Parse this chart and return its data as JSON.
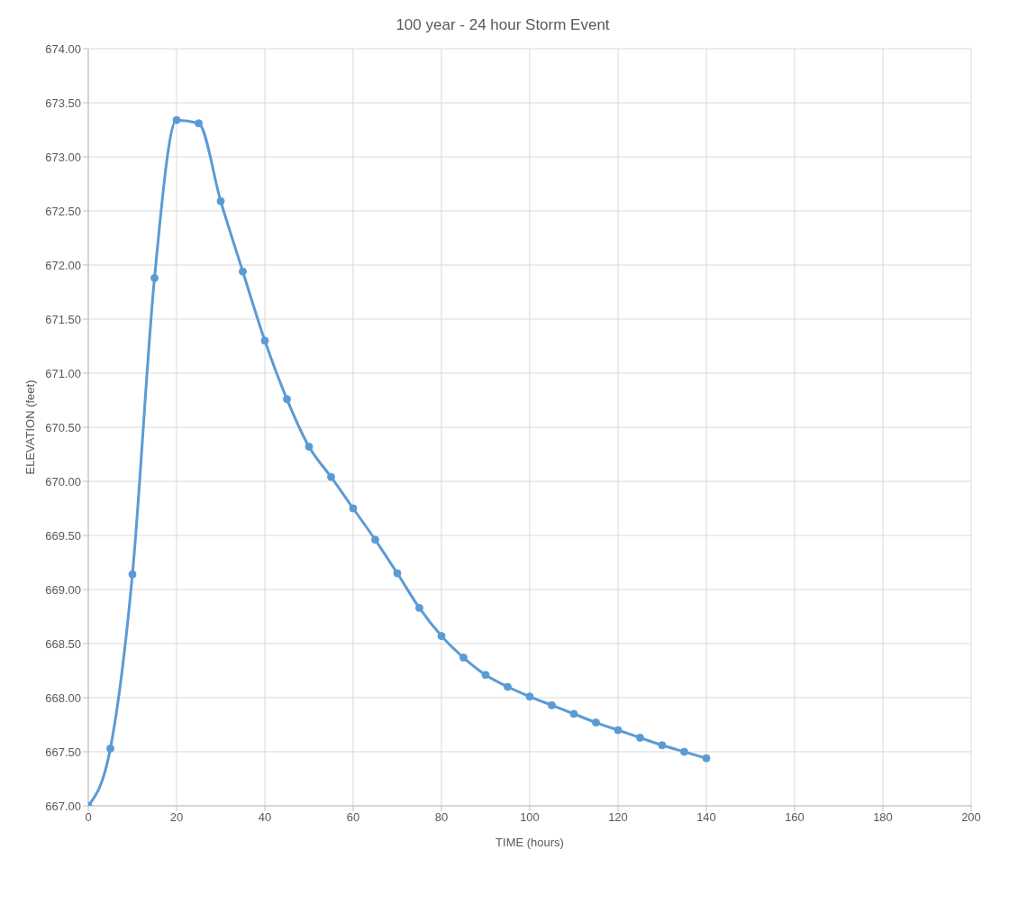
{
  "chart_data": {
    "type": "line",
    "title": "100 year - 24 hour Storm Event",
    "xlabel": "TIME (hours)",
    "ylabel": "ELEVATION (feet)",
    "x": [
      0,
      5,
      10,
      15,
      20,
      25,
      30,
      35,
      40,
      45,
      50,
      55,
      60,
      65,
      70,
      75,
      80,
      85,
      90,
      95,
      100,
      105,
      110,
      115,
      120,
      125,
      130,
      135,
      140
    ],
    "series": [
      {
        "color": "#5b9bd5",
        "values": [
          667.0,
          667.53,
          669.14,
          671.88,
          673.34,
          673.31,
          672.59,
          671.94,
          671.3,
          670.76,
          670.32,
          670.04,
          669.75,
          669.46,
          669.15,
          668.83,
          668.57,
          668.37,
          668.21,
          668.1,
          668.01,
          667.93,
          667.85,
          667.77,
          667.7,
          667.63,
          667.56,
          667.5,
          667.44
        ]
      }
    ],
    "xlim": [
      0,
      200
    ],
    "xticks": [
      0,
      20,
      40,
      60,
      80,
      100,
      120,
      140,
      160,
      180,
      200
    ],
    "ylim": [
      667,
      674
    ],
    "yticks": [
      {
        "value": 667,
        "label": "667.00"
      },
      {
        "value": 667.5,
        "label": "667.50"
      },
      {
        "value": 668,
        "label": "668.00"
      },
      {
        "value": 668.5,
        "label": "668.50"
      },
      {
        "value": 669,
        "label": "669.00"
      },
      {
        "value": 669.5,
        "label": "669.50"
      },
      {
        "value": 670,
        "label": "670.00"
      },
      {
        "value": 670.5,
        "label": "670.50"
      },
      {
        "value": 671,
        "label": "671.00"
      },
      {
        "value": 671.5,
        "label": "671.50"
      },
      {
        "value": 672,
        "label": "672.00"
      },
      {
        "value": 672.5,
        "label": "672.50"
      },
      {
        "value": 673,
        "label": "673.00"
      },
      {
        "value": 673.5,
        "label": "673.50"
      },
      {
        "value": 674,
        "label": "674.00"
      }
    ],
    "grid": true,
    "legend": false,
    "marker": "circle",
    "line_style": "solid"
  }
}
